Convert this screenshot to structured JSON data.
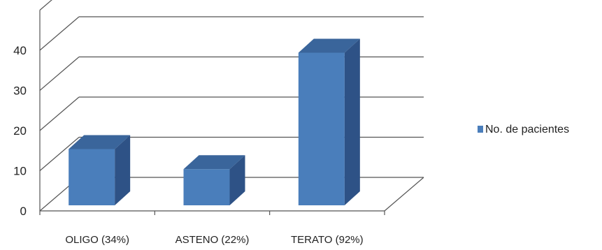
{
  "chart_data": {
    "type": "bar",
    "categories": [
      "OLIGO (34%)",
      "ASTENO (22%)",
      "TERATO (92%)"
    ],
    "series": [
      {
        "name": "No. de pacientes",
        "values": [
          14,
          9,
          38
        ],
        "color": "#4a7ebb"
      }
    ],
    "ylim": [
      0,
      40
    ],
    "yticks": [
      "0",
      "10",
      "20",
      "30",
      "40"
    ],
    "grid": true,
    "legend": "right",
    "style": "3d"
  }
}
